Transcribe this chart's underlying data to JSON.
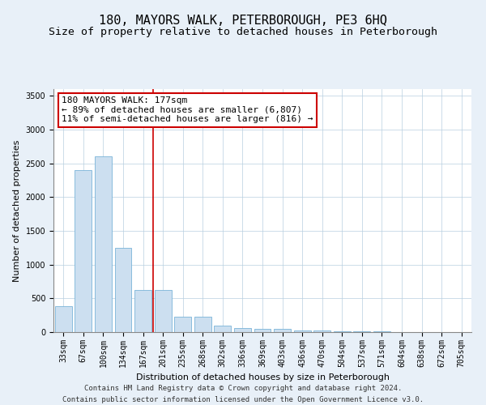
{
  "title": "180, MAYORS WALK, PETERBOROUGH, PE3 6HQ",
  "subtitle": "Size of property relative to detached houses in Peterborough",
  "xlabel": "Distribution of detached houses by size in Peterborough",
  "ylabel": "Number of detached properties",
  "categories": [
    "33sqm",
    "67sqm",
    "100sqm",
    "134sqm",
    "167sqm",
    "201sqm",
    "235sqm",
    "268sqm",
    "302sqm",
    "336sqm",
    "369sqm",
    "403sqm",
    "436sqm",
    "470sqm",
    "504sqm",
    "537sqm",
    "571sqm",
    "604sqm",
    "638sqm",
    "672sqm",
    "705sqm"
  ],
  "values": [
    390,
    2400,
    2600,
    1250,
    630,
    630,
    225,
    225,
    100,
    60,
    50,
    45,
    30,
    20,
    15,
    10,
    8,
    5,
    4,
    3,
    3
  ],
  "bar_color": "#ccdff0",
  "bar_edge_color": "#7ab4d8",
  "highlight_line_index": 4,
  "highlight_line_color": "#cc0000",
  "annotation_box_text": "180 MAYORS WALK: 177sqm\n← 89% of detached houses are smaller (6,807)\n11% of semi-detached houses are larger (816) →",
  "annotation_box_color": "#cc0000",
  "footer_line1": "Contains HM Land Registry data © Crown copyright and database right 2024.",
  "footer_line2": "Contains public sector information licensed under the Open Government Licence v3.0.",
  "ylim": [
    0,
    3600
  ],
  "yticks": [
    0,
    500,
    1000,
    1500,
    2000,
    2500,
    3000,
    3500
  ],
  "background_color": "#e8f0f8",
  "plot_bg_color": "#ffffff",
  "title_fontsize": 11,
  "subtitle_fontsize": 9.5,
  "axis_label_fontsize": 8,
  "tick_fontsize": 7,
  "annotation_fontsize": 8,
  "footer_fontsize": 6.5
}
